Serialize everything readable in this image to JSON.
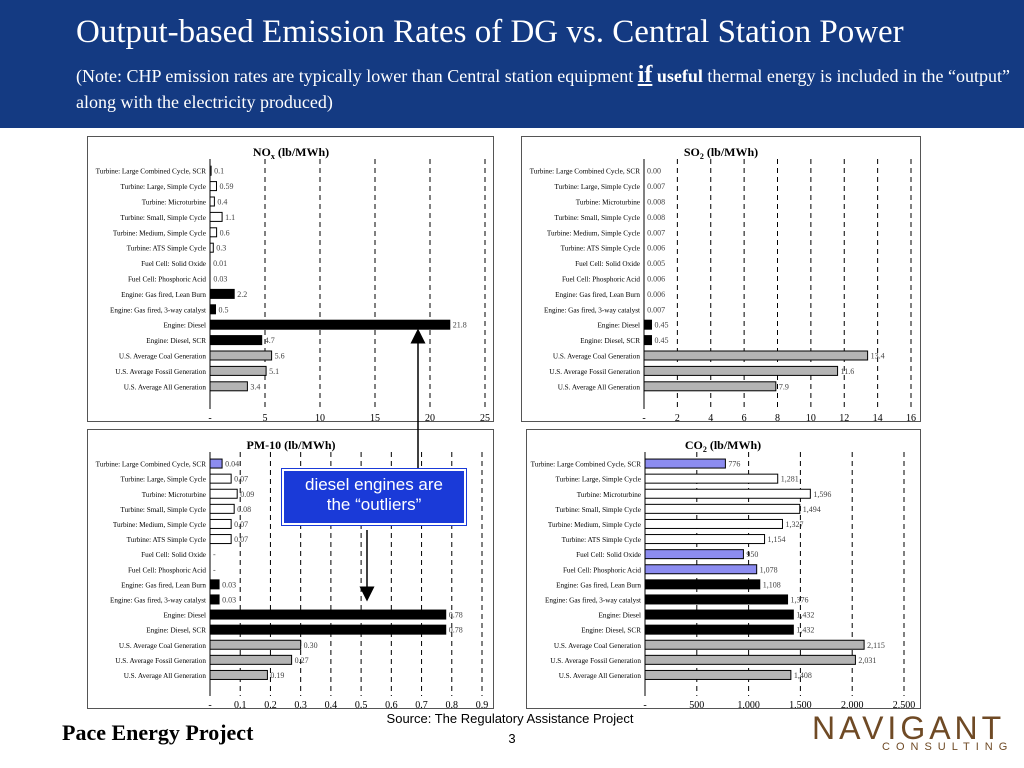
{
  "slide": {
    "title": "Output-based Emission Rates of DG vs. Central Station Power",
    "note_part1": "(Note:  CHP emission rates are typically lower than Central station equipment ",
    "note_if": "if",
    "note_useful": "useful",
    "note_part2": " thermal energy is included in the “output” along with the electricity produced)"
  },
  "callout": {
    "line1": "diesel engines are",
    "line2": "the “outliers”"
  },
  "footer": {
    "left": "Pace Energy Project",
    "source": "Source: The Regulatory Assistance Project",
    "page": "3",
    "logo_main": "NAVIGANT",
    "logo_sub": "CONSULTING"
  },
  "colors": {
    "header": "#143a82",
    "callout": "#1a3ad8",
    "white_bar": "#ffffff",
    "gray_bar": "#b4b4b4",
    "black_bar": "#000000",
    "blue_bar": "#8c8cf0",
    "logo": "#6f4a25"
  },
  "chart_data": [
    {
      "type": "bar",
      "orientation": "horizontal",
      "title": "NOx (lb/MWh)",
      "title_main": "NO",
      "title_sub": "x",
      "title_rest": " (lb/MWh)",
      "categories": [
        "Turbine: Large Combined Cycle, SCR",
        "Turbine: Large, Simple Cycle",
        "Turbine: Microturbine",
        "Turbine: Small, Simple Cycle",
        "Turbine: Medium, Simple Cycle",
        "Turbine: ATS Simple Cycle",
        "Fuel Cell: Solid Oxide",
        "Fuel Cell: Phosphoric Acid",
        "Engine: Gas fired, Lean Burn",
        "Engine: Gas fired, 3-way catalyst",
        "Engine: Diesel",
        "Engine: Diesel, SCR",
        "U.S. Average Coal Generation",
        "U.S. Average Fossil Generation",
        "U.S. Average All Generation"
      ],
      "values": [
        0.1,
        0.59,
        0.4,
        1.1,
        0.6,
        0.3,
        0.01,
        0.03,
        2.2,
        0.5,
        21.8,
        4.7,
        5.6,
        5.1,
        3.4
      ],
      "value_labels": [
        "0.1",
        "0.59",
        "0.4",
        "1.1",
        "0.6",
        "0.3",
        "0.01",
        "0.03",
        "2.2",
        "0.5",
        "21.8",
        "4.7",
        "5.6",
        "5.1",
        "3.4"
      ],
      "fills": [
        "white",
        "white",
        "white",
        "white",
        "white",
        "white",
        "white",
        "white",
        "black",
        "black",
        "black",
        "black",
        "gray",
        "gray",
        "gray"
      ],
      "xlim": [
        0,
        25
      ],
      "ticks": [
        0,
        5,
        10,
        15,
        20,
        25
      ],
      "tick_labels": [
        "-",
        "5",
        "10",
        "15",
        "20",
        "25"
      ],
      "grid": "vertical dashed"
    },
    {
      "type": "bar",
      "orientation": "horizontal",
      "title": "SO2 (lb/MWh)",
      "title_main": "SO",
      "title_sub": "2",
      "title_rest": " (lb/MWh)",
      "categories": [
        "Turbine: Large Combined Cycle, SCR",
        "Turbine: Large, Simple Cycle",
        "Turbine: Microturbine",
        "Turbine: Small, Simple Cycle",
        "Turbine: Medium, Simple Cycle",
        "Turbine: ATS Simple Cycle",
        "Fuel Cell: Solid Oxide",
        "Fuel Cell: Phosphoric Acid",
        "Engine: Gas fired, Lean Burn",
        "Engine: Gas fired, 3-way catalyst",
        "Engine: Diesel",
        "Engine: Diesel, SCR",
        "U.S. Average Coal Generation",
        "U.S. Average Fossil Generation",
        "U.S. Average All Generation"
      ],
      "values": [
        0.0,
        0.007,
        0.008,
        0.008,
        0.007,
        0.006,
        0.005,
        0.006,
        0.006,
        0.007,
        0.45,
        0.45,
        13.4,
        11.6,
        7.9
      ],
      "value_labels": [
        "0.00",
        "0.007",
        "0.008",
        "0.008",
        "0.007",
        "0.006",
        "0.005",
        "0.006",
        "0.006",
        "0.007",
        "0.45",
        "0.45",
        "13.4",
        "11.6",
        "7.9"
      ],
      "fills": [
        "white",
        "white",
        "white",
        "white",
        "white",
        "white",
        "white",
        "white",
        "black",
        "black",
        "black",
        "black",
        "gray",
        "gray",
        "gray"
      ],
      "xlim": [
        0,
        16
      ],
      "ticks": [
        0,
        2,
        4,
        6,
        8,
        10,
        12,
        14,
        16
      ],
      "tick_labels": [
        "-",
        "2",
        "4",
        "6",
        "8",
        "10",
        "12",
        "14",
        "16"
      ],
      "grid": "vertical dashed"
    },
    {
      "type": "bar",
      "orientation": "horizontal",
      "title": "PM-10 (lb/MWh)",
      "title_main": "PM-10 (lb/MWh)",
      "title_sub": "",
      "title_rest": "",
      "categories": [
        "Turbine: Large Combined Cycle, SCR",
        "Turbine: Large, Simple Cycle",
        "Turbine: Microturbine",
        "Turbine: Small, Simple Cycle",
        "Turbine: Medium, Simple Cycle",
        "Turbine: ATS Simple Cycle",
        "Fuel Cell: Solid Oxide",
        "Fuel Cell: Phosphoric Acid",
        "Engine: Gas fired, Lean Burn",
        "Engine: Gas fired, 3-way catalyst",
        "Engine: Diesel",
        "Engine: Diesel, SCR",
        "U.S. Average Coal Generation",
        "U.S. Average Fossil Generation",
        "U.S. Average All Generation"
      ],
      "values": [
        0.04,
        0.07,
        0.09,
        0.08,
        0.07,
        0.07,
        0,
        0,
        0.03,
        0.03,
        0.78,
        0.78,
        0.3,
        0.27,
        0.19
      ],
      "value_labels": [
        "0.04",
        "0.07",
        "0.09",
        "0.08",
        "0.07",
        "0.07",
        "-",
        "-",
        "0.03",
        "0.03",
        "0.78",
        "0.78",
        "0.30",
        "0.27",
        "0.19"
      ],
      "fills": [
        "blue",
        "white",
        "white",
        "white",
        "white",
        "white",
        "white",
        "white",
        "black",
        "black",
        "black",
        "black",
        "gray",
        "gray",
        "gray"
      ],
      "xlim": [
        0,
        0.9
      ],
      "ticks": [
        0,
        0.1,
        0.2,
        0.3,
        0.4,
        0.5,
        0.6,
        0.7,
        0.8,
        0.9
      ],
      "tick_labels": [
        "-",
        "0.1",
        "0.2",
        "0.3",
        "0.4",
        "0.5",
        "0.6",
        "0.7",
        "0.8",
        "0.9"
      ],
      "grid": "vertical dashed"
    },
    {
      "type": "bar",
      "orientation": "horizontal",
      "title": "CO2 (lb/MWh)",
      "title_main": "CO",
      "title_sub": "2",
      "title_rest": " (lb/MWh)",
      "categories": [
        "Turbine: Large Combined Cycle, SCR",
        "Turbine: Large, Simple Cycle",
        "Turbine: Microturbine",
        "Turbine: Small, Simple Cycle",
        "Turbine: Medium, Simple Cycle",
        "Turbine: ATS Simple Cycle",
        "Fuel Cell: Solid Oxide",
        "Fuel Cell: Phosphoric Acid",
        "Engine: Gas fired, Lean Burn",
        "Engine: Gas fired, 3-way catalyst",
        "Engine: Diesel",
        "Engine: Diesel, SCR",
        "U.S. Average Coal Generation",
        "U.S. Average Fossil Generation",
        "U.S. Average All Generation"
      ],
      "values": [
        776,
        1281,
        1596,
        1494,
        1327,
        1154,
        950,
        1078,
        1108,
        1376,
        1432,
        1432,
        2115,
        2031,
        1408
      ],
      "value_labels": [
        "776",
        "1,281",
        "1,596",
        "1,494",
        "1,327",
        "1,154",
        "950",
        "1,078",
        "1,108",
        "1,376",
        "1,432",
        "1,432",
        "2,115",
        "2,031",
        "1,408"
      ],
      "fills": [
        "blue",
        "white",
        "white",
        "white",
        "white",
        "white",
        "blue",
        "blue",
        "black",
        "black",
        "black",
        "black",
        "gray",
        "gray",
        "gray"
      ],
      "xlim": [
        0,
        2500
      ],
      "ticks": [
        0,
        500,
        1000,
        1500,
        2000,
        2500
      ],
      "tick_labels": [
        "-",
        "500",
        "1,000",
        "1,500",
        "2,000",
        "2,500"
      ],
      "grid": "vertical dashed"
    }
  ]
}
